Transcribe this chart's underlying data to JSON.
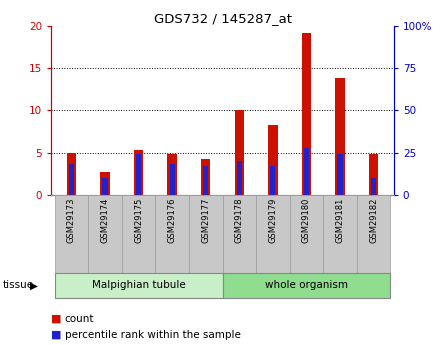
{
  "title": "GDS732 / 145287_at",
  "categories": [
    "GSM29173",
    "GSM29174",
    "GSM29175",
    "GSM29176",
    "GSM29177",
    "GSM29178",
    "GSM29179",
    "GSM29180",
    "GSM29181",
    "GSM29182"
  ],
  "red_values": [
    5.0,
    2.7,
    5.3,
    4.9,
    4.2,
    10.0,
    8.3,
    19.2,
    13.8,
    4.8
  ],
  "blue_values_pct": [
    18,
    10,
    24,
    18,
    17,
    20,
    17,
    28,
    24,
    10
  ],
  "tissue_groups": [
    {
      "label": "Malpighian tubule",
      "start": 0,
      "end": 5,
      "color": "#c8efc8"
    },
    {
      "label": "whole organism",
      "start": 5,
      "end": 10,
      "color": "#90dd90"
    }
  ],
  "ylim_left": [
    0,
    20
  ],
  "ylim_right": [
    0,
    100
  ],
  "yticks_left": [
    0,
    5,
    10,
    15,
    20
  ],
  "yticks_right": [
    0,
    25,
    50,
    75,
    100
  ],
  "ytick_labels_right": [
    "0",
    "25",
    "50",
    "75",
    "100%"
  ],
  "ytick_labels_left": [
    "0",
    "5",
    "10",
    "15",
    "20"
  ],
  "left_axis_color": "#cc0000",
  "right_axis_color": "#0000cc",
  "bar_red_color": "#cc1100",
  "bar_blue_color": "#2222cc",
  "grid_color": "#000000",
  "background_color": "#ffffff",
  "tick_bg_color": "#c8c8c8",
  "legend_count_color": "#cc1100",
  "legend_pct_color": "#2222cc"
}
